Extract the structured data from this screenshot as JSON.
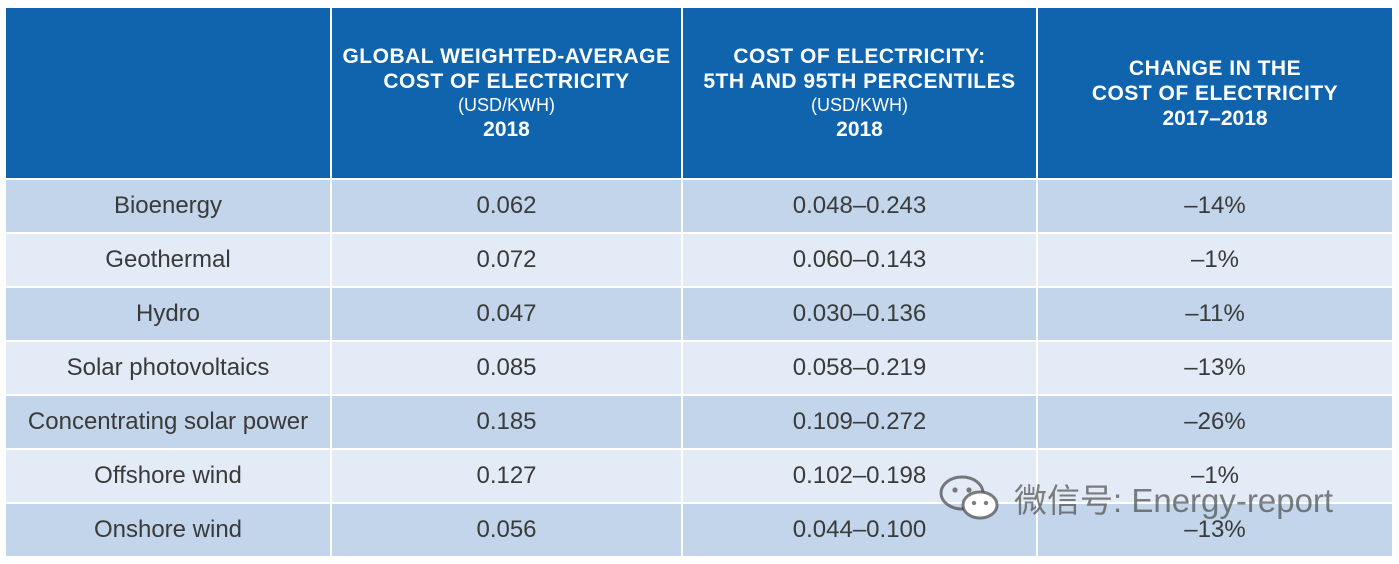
{
  "table": {
    "headers": [
      {
        "lines": []
      },
      {
        "lines": [
          "GLOBAL WEIGHTED-AVERAGE",
          "COST OF ELECTRICITY"
        ],
        "unit": "(USD/KWH)",
        "year": "2018"
      },
      {
        "lines": [
          "COST OF ELECTRICITY:",
          "5TH AND 95TH PERCENTILES"
        ],
        "unit": "(USD/KWH)",
        "year": "2018"
      },
      {
        "lines": [
          "CHANGE IN THE",
          "COST OF ELECTRICITY"
        ],
        "unit": "",
        "year": "2017–2018"
      }
    ],
    "rows": [
      [
        "Bioenergy",
        "0.062",
        "0.048–0.243",
        "–14%"
      ],
      [
        "Geothermal",
        "0.072",
        "0.060–0.143",
        "–1%"
      ],
      [
        "Hydro",
        "0.047",
        "0.030–0.136",
        "–11%"
      ],
      [
        "Solar photovoltaics",
        "0.085",
        "0.058–0.219",
        "–13%"
      ],
      [
        "Concentrating solar power",
        "0.185",
        "0.109–0.272",
        "–26%"
      ],
      [
        "Offshore wind",
        "0.127",
        "0.102–0.198",
        "–1%"
      ],
      [
        "Onshore wind",
        "0.056",
        "0.044–0.100",
        "–13%"
      ]
    ]
  },
  "watermark": {
    "text": "微信号: Energy-report",
    "icon": "wechat-icon"
  },
  "colors": {
    "header": "#0f64ad",
    "row_dark": "#c2d5ea",
    "row_light": "#e3ecf6"
  }
}
